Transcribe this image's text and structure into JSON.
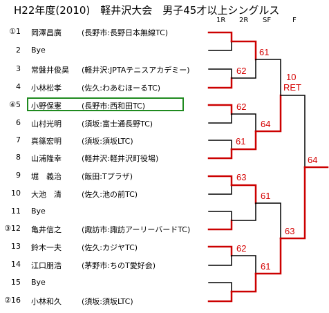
{
  "title": "H22年度(2010)　軽井沢大会　男子45才以上シングルス",
  "round_headers": [
    "1R",
    "2R",
    "SF",
    "F"
  ],
  "players": [
    {
      "seed": "①1",
      "name": "岡澤昌廣",
      "club": "(長野市:長野日本無線TC)"
    },
    {
      "seed": "2",
      "name": "Bye",
      "club": ""
    },
    {
      "seed": "3",
      "name": "常盤井俊昊",
      "club": "(軽井沢:JPTAテニスアカデミー)"
    },
    {
      "seed": "4",
      "name": "小林松孝",
      "club": "(佐久:わあむほーるTC)"
    },
    {
      "seed": "④5",
      "name": "小野保憲",
      "club": "(長野市:西和田TC)"
    },
    {
      "seed": "6",
      "name": "山村光明",
      "club": "(須坂:富士通長野TC)"
    },
    {
      "seed": "7",
      "name": "真篠宏明",
      "club": "(須坂:須坂LTC)"
    },
    {
      "seed": "8",
      "name": "山浦隆幸",
      "club": "(軽井沢:軽井沢町役場)"
    },
    {
      "seed": "9",
      "name": "堀　義治",
      "club": "(飯田:Tプラザ)"
    },
    {
      "seed": "10",
      "name": "大池　清",
      "club": "(佐久:池の前TC)"
    },
    {
      "seed": "11",
      "name": "Bye",
      "club": ""
    },
    {
      "seed": "③12",
      "name": "亀井信之",
      "club": "(諏訪市:諏訪アーリーバードTC)"
    },
    {
      "seed": "13",
      "name": "鈴木一夫",
      "club": "(佐久:カジヤTC)"
    },
    {
      "seed": "14",
      "name": "江口朋浩",
      "club": "(茅野市:ちのT愛好会)"
    },
    {
      "seed": "15",
      "name": "Bye",
      "club": ""
    },
    {
      "seed": "②16",
      "name": "小林和久",
      "club": "(須坂:須坂LTC)"
    }
  ],
  "scores": {
    "r1_m2": "62",
    "r1_m3": "62",
    "r1_m4": "61",
    "r1_m5": "63",
    "r1_m7": "62",
    "r2_m1": "61",
    "r2_m2": "64",
    "r2_m3": "61",
    "r2_m4": "61",
    "sf1_line1": "10",
    "sf1_line2": "RET",
    "sf2": "63",
    "final": "64"
  },
  "colors": {
    "winner_line": "#cc0000",
    "loser_line": "#000000",
    "score_text": "#d40000",
    "highlight_border": "#1f8a1f"
  }
}
